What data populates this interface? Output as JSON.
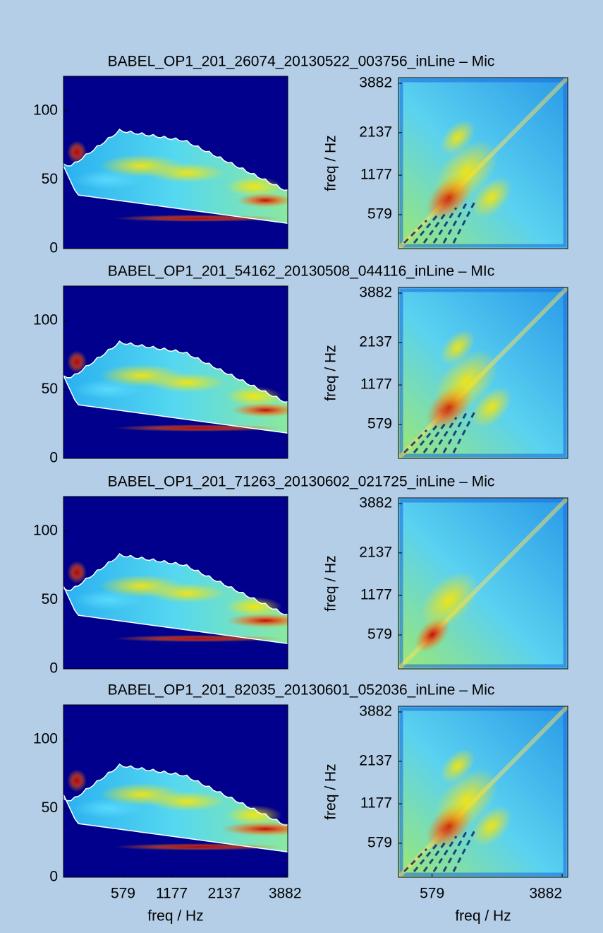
{
  "chart_data": [
    {
      "type": "heatmap",
      "title": "BABEL_OP1_201_26074_20130522_003756_inLine – Mic",
      "spectrum": {
        "ylim": [
          0,
          125
        ],
        "yticks": [
          0,
          50,
          100
        ]
      },
      "covariance": {
        "ylabel": "freq / Hz",
        "yscale": "mel",
        "ylim": [
          220,
          4140
        ],
        "yticks": [
          579,
          1177,
          2137,
          3882
        ]
      }
    },
    {
      "type": "heatmap",
      "title": "BABEL_OP1_201_54162_20130508_044116_inLine – MIc",
      "spectrum": {
        "ylim": [
          0,
          125
        ],
        "yticks": [
          0,
          50,
          100
        ]
      },
      "covariance": {
        "ylabel": "freq / Hz",
        "yscale": "mel",
        "ylim": [
          220,
          4140
        ],
        "yticks": [
          579,
          1177,
          2137,
          3882
        ]
      }
    },
    {
      "type": "heatmap",
      "title": "BABEL_OP1_201_71263_20130602_021725_inLine – Mic",
      "spectrum": {
        "ylim": [
          0,
          125
        ],
        "yticks": [
          0,
          50,
          100
        ]
      },
      "covariance": {
        "ylabel": "freq / Hz",
        "yscale": "mel",
        "ylim": [
          220,
          4140
        ],
        "yticks": [
          579,
          1177,
          2137,
          3882
        ]
      }
    },
    {
      "type": "heatmap",
      "title": "BABEL_OP1_201_82035_20130601_052036_inLine – Mic",
      "spectrum": {
        "ylim": [
          0,
          125
        ],
        "yticks": [
          0,
          50,
          100
        ],
        "xlabel": "freq / Hz",
        "xscale": "mel",
        "xlim": [
          100,
          3980
        ],
        "xticks": [
          579,
          1177,
          2137,
          3882
        ]
      },
      "covariance": {
        "ylabel": "freq / Hz",
        "yscale": "mel",
        "ylim": [
          220,
          4140
        ],
        "yticks": [
          579,
          1177,
          2137,
          3882
        ],
        "xlabel": "freq / Hz",
        "xscale": "mel",
        "xlim": [
          220,
          4140
        ],
        "xticks": [
          579,
          3882
        ]
      }
    }
  ]
}
